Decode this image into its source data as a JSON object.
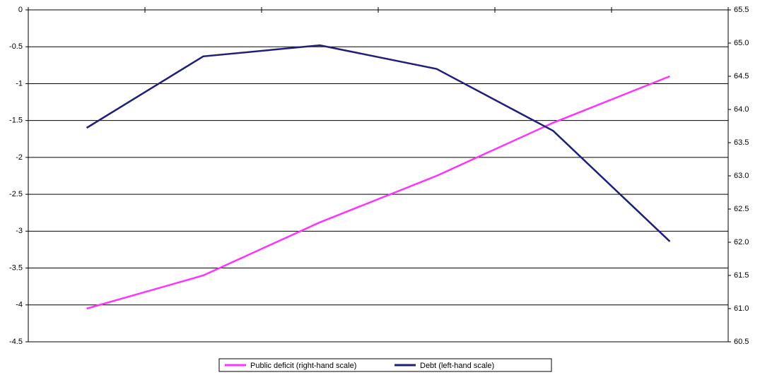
{
  "chart_data": {
    "type": "line",
    "categories": [
      null,
      null,
      null,
      null,
      null,
      null
    ],
    "series": [
      {
        "name": "Public deficit (right-hand scale)",
        "color": "#ff33ff",
        "axis": "y2",
        "values": [
          61.0,
          61.5,
          62.3,
          63.0,
          63.8,
          64.5
        ]
      },
      {
        "name": "Debt (left-hand scale)",
        "color": "#1f1f7a",
        "values": [
          -1.6,
          -0.63,
          -0.48,
          -0.8,
          -1.64,
          -3.14
        ]
      }
    ],
    "ylim": [
      -4.5,
      0
    ],
    "yticks": [
      0,
      -0.5,
      -1,
      -1.5,
      -2,
      -2.5,
      -3,
      -3.5,
      -4,
      -4.5
    ],
    "y2lim": [
      60.5,
      65.5
    ],
    "y2ticks": [
      {
        "value": 65.5,
        "label": "65.5"
      },
      {
        "value": 65,
        "label": "65.0"
      },
      {
        "value": 64.5,
        "label": "64.5"
      },
      {
        "value": 64,
        "label": "64.0"
      },
      {
        "value": 63.5,
        "label": "63.5"
      },
      {
        "value": 63,
        "label": "63.0"
      },
      {
        "value": 62.5,
        "label": "62.5"
      },
      {
        "value": 62,
        "label": "62.0"
      },
      {
        "value": 61.5,
        "label": "61.5"
      },
      {
        "value": 61,
        "label": "61.0"
      },
      {
        "value": 60.5,
        "label": "60.5"
      }
    ],
    "grid": true
  }
}
